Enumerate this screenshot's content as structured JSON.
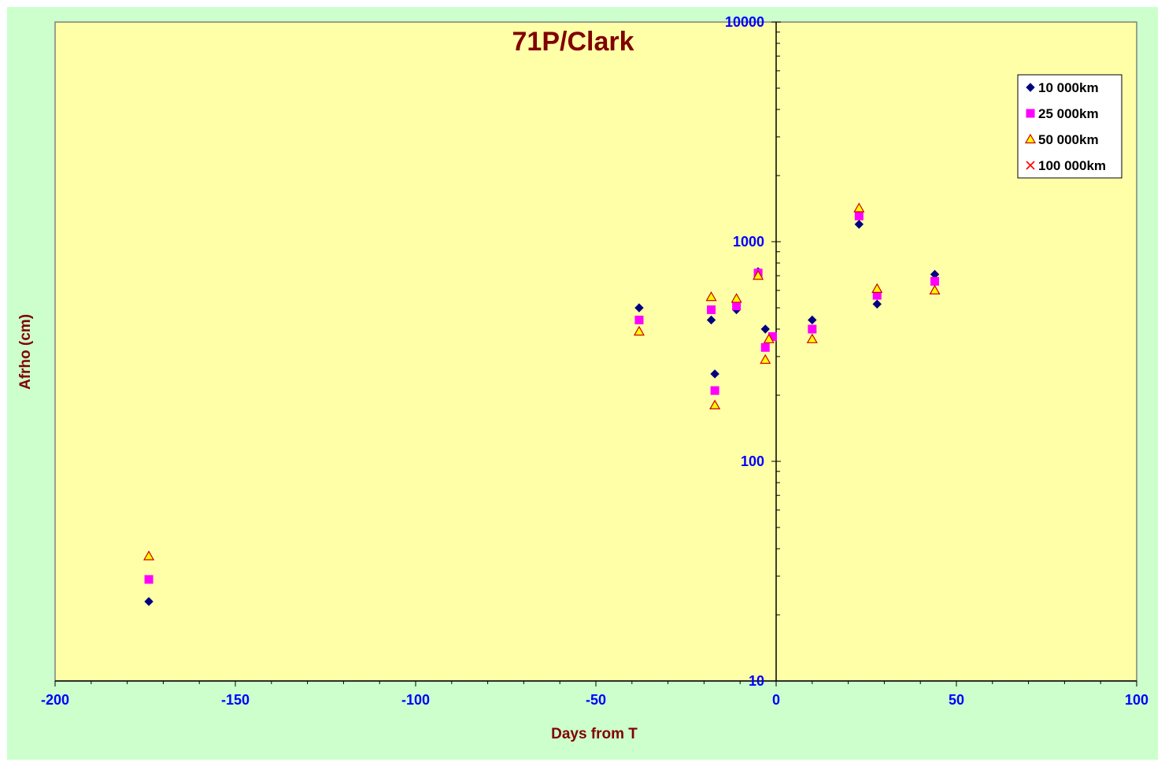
{
  "chart_data": {
    "type": "scatter",
    "title": "71P/Clark",
    "xlabel": "Days from T",
    "ylabel": "Afrho (cm)",
    "xlim": [
      -200,
      100
    ],
    "ylim": [
      10,
      10000
    ],
    "y_scale": "log",
    "x_ticks": [
      -200,
      -150,
      -100,
      -50,
      0,
      50,
      100
    ],
    "x_tick_labels": [
      "-200",
      "-150",
      "-100",
      "-50",
      "0",
      "50",
      "100"
    ],
    "y_ticks": [
      10,
      100,
      1000,
      10000
    ],
    "y_tick_labels": [
      "10",
      "100",
      "1000",
      "10000"
    ],
    "grid": false,
    "legend_position": "top-right",
    "series": [
      {
        "name": "10 000km",
        "marker": "diamond",
        "color": "#000080",
        "points": [
          [
            -174,
            23
          ],
          [
            -38,
            500
          ],
          [
            -18,
            440
          ],
          [
            -17,
            250
          ],
          [
            -11,
            490
          ],
          [
            -5,
            730
          ],
          [
            -3,
            400
          ],
          [
            10,
            440
          ],
          [
            23,
            1200
          ],
          [
            28,
            520
          ],
          [
            44,
            710
          ]
        ]
      },
      {
        "name": "25 000km",
        "marker": "square",
        "color": "#ff00ff",
        "points": [
          [
            -174,
            29
          ],
          [
            -38,
            440
          ],
          [
            -18,
            490
          ],
          [
            -17,
            210
          ],
          [
            -11,
            510
          ],
          [
            -5,
            720
          ],
          [
            -3,
            330
          ],
          [
            -1,
            370
          ],
          [
            10,
            400
          ],
          [
            23,
            1310
          ],
          [
            28,
            570
          ],
          [
            44,
            660
          ]
        ]
      },
      {
        "name": "50 000km",
        "marker": "triangle",
        "color": "#ffff00",
        "stroke": "#cc0000",
        "points": [
          [
            -174,
            37
          ],
          [
            -38,
            390
          ],
          [
            -18,
            560
          ],
          [
            -17,
            180
          ],
          [
            -11,
            550
          ],
          [
            -5,
            700
          ],
          [
            -3,
            290
          ],
          [
            -2,
            360
          ],
          [
            10,
            360
          ],
          [
            23,
            1420
          ],
          [
            28,
            610
          ],
          [
            44,
            600
          ]
        ]
      },
      {
        "name": "100 000km",
        "marker": "x",
        "color": "#ff0000",
        "points": []
      }
    ]
  },
  "colors": {
    "outer_background": "#ccffcc",
    "plot_background": "#ffffa8",
    "title": "#800000",
    "tick_labels": "#0000ff",
    "axis": "#000000"
  }
}
